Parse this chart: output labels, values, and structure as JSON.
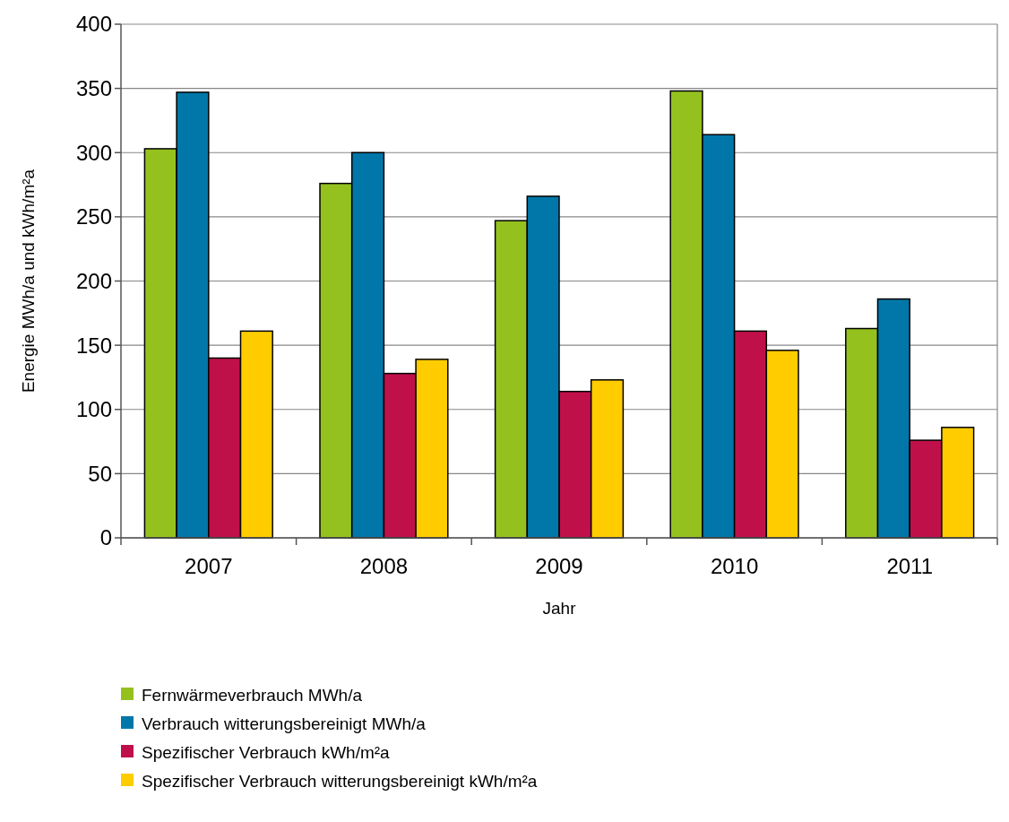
{
  "chart_data": {
    "type": "bar",
    "xlabel": "Jahr",
    "ylabel": "Energie MWh/a und kWh/m²a",
    "categories": [
      "2007",
      "2008",
      "2009",
      "2010",
      "2011"
    ],
    "series": [
      {
        "name": "Fernwärmeverbrauch MWh/a",
        "color": "#95c11f",
        "values": [
          303,
          276,
          247,
          348,
          163
        ]
      },
      {
        "name": "Verbrauch witterungsbereinigt MWh/a",
        "color": "#0077a8",
        "values": [
          347,
          300,
          266,
          314,
          186
        ]
      },
      {
        "name": "Spezifischer Verbrauch kWh/m²a",
        "color": "#c0104a",
        "values": [
          140,
          128,
          114,
          161,
          76
        ]
      },
      {
        "name": "Spezifischer Verbrauch witterungsbereinigt kWh/m²a",
        "color": "#ffcc00",
        "values": [
          161,
          139,
          123,
          146,
          86
        ]
      }
    ],
    "ylim": [
      0,
      400
    ],
    "yticks": [
      0,
      50,
      100,
      150,
      200,
      250,
      300,
      350,
      400
    ],
    "grid": "y",
    "legend": "bottom"
  }
}
